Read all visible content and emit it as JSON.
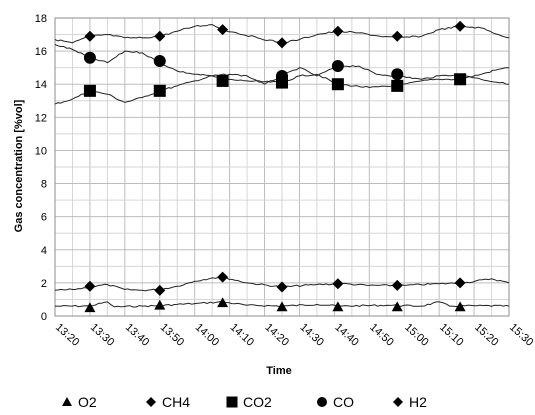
{
  "chart_data": {
    "type": "line",
    "title": "",
    "xlabel": "Time",
    "ylabel": "Gas concentration [%vol]",
    "ylim": [
      0,
      18
    ],
    "yticks": [
      0,
      2,
      4,
      6,
      8,
      10,
      12,
      14,
      16,
      18
    ],
    "xlim": [
      "13:20",
      "15:30"
    ],
    "xticks": [
      "13:20",
      "13:30",
      "13:40",
      "13:50",
      "14:00",
      "14:10",
      "14:20",
      "14:30",
      "14:40",
      "14:50",
      "15:00",
      "15:10",
      "15:20",
      "15:30"
    ],
    "grid": true,
    "legend_position": "bottom",
    "series": [
      {
        "name": "O2",
        "marker": "triangle",
        "line": [
          [
            "13:20",
            0.6
          ],
          [
            "13:30",
            0.6
          ],
          [
            "13:35",
            0.85
          ],
          [
            "13:37",
            0.55
          ],
          [
            "13:45",
            0.6
          ],
          [
            "13:50",
            0.62
          ],
          [
            "13:55",
            0.7
          ],
          [
            "14:00",
            0.75
          ],
          [
            "14:08",
            0.85
          ],
          [
            "14:15",
            0.65
          ],
          [
            "14:25",
            0.6
          ],
          [
            "14:35",
            0.7
          ],
          [
            "14:42",
            0.6
          ],
          [
            "14:55",
            0.65
          ],
          [
            "15:05",
            0.6
          ],
          [
            "15:10",
            0.85
          ],
          [
            "15:13",
            0.6
          ],
          [
            "15:20",
            0.62
          ],
          [
            "15:30",
            0.6
          ]
        ],
        "markers": [
          [
            "13:30",
            0.5
          ],
          [
            "13:50",
            0.65
          ],
          [
            "14:08",
            0.8
          ],
          [
            "14:25",
            0.55
          ],
          [
            "14:41",
            0.55
          ],
          [
            "14:58",
            0.55
          ],
          [
            "15:16",
            0.55
          ]
        ]
      },
      {
        "name": "CH4",
        "marker": "diamond",
        "line": [
          [
            "13:20",
            1.55
          ],
          [
            "13:25",
            1.6
          ],
          [
            "13:30",
            1.75
          ],
          [
            "13:35",
            1.9
          ],
          [
            "13:40",
            1.6
          ],
          [
            "13:45",
            1.55
          ],
          [
            "13:50",
            1.6
          ],
          [
            "13:55",
            1.8
          ],
          [
            "14:00",
            2.1
          ],
          [
            "14:05",
            2.3
          ],
          [
            "14:08",
            2.35
          ],
          [
            "14:15",
            2.0
          ],
          [
            "14:25",
            1.75
          ],
          [
            "14:35",
            1.9
          ],
          [
            "14:42",
            1.95
          ],
          [
            "14:50",
            1.85
          ],
          [
            "15:00",
            1.85
          ],
          [
            "15:10",
            1.95
          ],
          [
            "15:17",
            2.0
          ],
          [
            "15:25",
            2.25
          ],
          [
            "15:30",
            2.0
          ]
        ],
        "markers": [
          [
            "13:30",
            1.8
          ],
          [
            "13:50",
            1.55
          ],
          [
            "14:08",
            2.35
          ],
          [
            "14:25",
            1.75
          ],
          [
            "14:41",
            1.95
          ],
          [
            "14:58",
            1.85
          ],
          [
            "15:16",
            2.0
          ]
        ]
      },
      {
        "name": "CO2",
        "marker": "square",
        "line": [
          [
            "13:20",
            12.8
          ],
          [
            "13:25",
            13.1
          ],
          [
            "13:30",
            13.6
          ],
          [
            "13:35",
            13.4
          ],
          [
            "13:40",
            12.9
          ],
          [
            "13:45",
            13.2
          ],
          [
            "13:50",
            13.6
          ],
          [
            "13:55",
            13.9
          ],
          [
            "14:00",
            14.2
          ],
          [
            "14:05",
            14.5
          ],
          [
            "14:08",
            14.3
          ],
          [
            "14:15",
            14.2
          ],
          [
            "14:25",
            14.1
          ],
          [
            "14:30",
            14.5
          ],
          [
            "14:35",
            14.6
          ],
          [
            "14:41",
            14.0
          ],
          [
            "14:50",
            13.8
          ],
          [
            "14:58",
            13.9
          ],
          [
            "15:05",
            14.2
          ],
          [
            "15:10",
            14.3
          ],
          [
            "15:16",
            14.3
          ],
          [
            "15:22",
            14.6
          ],
          [
            "15:27",
            14.9
          ],
          [
            "15:30",
            15.0
          ]
        ],
        "markers": [
          [
            "13:30",
            13.6
          ],
          [
            "13:50",
            13.6
          ],
          [
            "14:08",
            14.2
          ],
          [
            "14:25",
            14.1
          ],
          [
            "14:41",
            14.0
          ],
          [
            "14:58",
            13.9
          ],
          [
            "15:16",
            14.3
          ]
        ]
      },
      {
        "name": "CO",
        "marker": "circle",
        "line": [
          [
            "13:20",
            16.4
          ],
          [
            "13:25",
            16.1
          ],
          [
            "13:30",
            15.6
          ],
          [
            "13:35",
            15.3
          ],
          [
            "13:40",
            16.0
          ],
          [
            "13:45",
            15.9
          ],
          [
            "13:50",
            15.3
          ],
          [
            "13:55",
            14.8
          ],
          [
            "14:00",
            14.6
          ],
          [
            "14:05",
            14.5
          ],
          [
            "14:10",
            14.6
          ],
          [
            "14:15",
            14.5
          ],
          [
            "14:20",
            14.0
          ],
          [
            "14:25",
            14.5
          ],
          [
            "14:30",
            15.0
          ],
          [
            "14:35",
            14.5
          ],
          [
            "14:41",
            15.1
          ],
          [
            "14:47",
            15.1
          ],
          [
            "14:52",
            14.6
          ],
          [
            "14:58",
            14.5
          ],
          [
            "15:05",
            14.3
          ],
          [
            "15:10",
            14.5
          ],
          [
            "15:16",
            14.6
          ],
          [
            "15:22",
            14.3
          ],
          [
            "15:30",
            14.0
          ]
        ],
        "markers": [
          [
            "13:30",
            15.6
          ],
          [
            "13:50",
            15.4
          ],
          [
            "14:25",
            14.5
          ],
          [
            "14:41",
            15.1
          ],
          [
            "14:58",
            14.6
          ]
        ]
      },
      {
        "name": "H2",
        "marker": "diamond",
        "line": [
          [
            "13:20",
            16.7
          ],
          [
            "13:25",
            16.5
          ],
          [
            "13:30",
            16.9
          ],
          [
            "13:35",
            17.0
          ],
          [
            "13:40",
            16.8
          ],
          [
            "13:45",
            16.8
          ],
          [
            "13:50",
            16.9
          ],
          [
            "13:55",
            17.2
          ],
          [
            "14:00",
            17.5
          ],
          [
            "14:05",
            17.6
          ],
          [
            "14:08",
            17.3
          ],
          [
            "14:12",
            17.1
          ],
          [
            "14:18",
            16.8
          ],
          [
            "14:25",
            16.5
          ],
          [
            "14:30",
            16.7
          ],
          [
            "14:35",
            17.0
          ],
          [
            "14:41",
            17.2
          ],
          [
            "14:47",
            17.1
          ],
          [
            "14:53",
            16.9
          ],
          [
            "14:58",
            16.8
          ],
          [
            "15:05",
            16.9
          ],
          [
            "15:10",
            17.3
          ],
          [
            "15:16",
            17.5
          ],
          [
            "15:22",
            17.4
          ],
          [
            "15:27",
            17.0
          ],
          [
            "15:30",
            16.8
          ]
        ],
        "markers": [
          [
            "13:30",
            16.9
          ],
          [
            "13:50",
            16.9
          ],
          [
            "14:08",
            17.3
          ],
          [
            "14:25",
            16.5
          ],
          [
            "14:41",
            17.2
          ],
          [
            "14:58",
            16.9
          ],
          [
            "15:16",
            17.5
          ]
        ]
      }
    ]
  }
}
